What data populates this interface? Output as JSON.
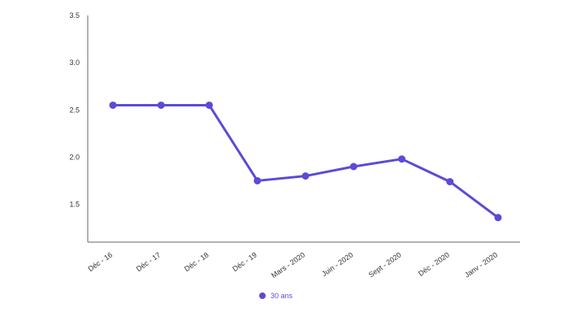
{
  "chart_data": {
    "type": "line",
    "title": "",
    "xlabel": "",
    "ylabel": "",
    "categories": [
      "Déc - 16",
      "Déc - 17",
      "Déc - 18",
      "Déc - 19",
      "Mars - 2020",
      "Juin - 2020",
      "Sept - 2020",
      "Déc - 2020",
      "Janv - 2020"
    ],
    "series": [
      {
        "name": "30 ans",
        "color": "#5b4bd6",
        "values": [
          2.55,
          2.55,
          2.55,
          1.75,
          1.8,
          1.9,
          1.98,
          1.74,
          1.36
        ]
      }
    ],
    "ylim": [
      1.1,
      3.5
    ],
    "yticks": [
      1.5,
      2.0,
      2.5,
      3.0,
      3.5
    ],
    "ytick_labels": [
      "1.5",
      "2.0",
      "2.5",
      "3.0",
      "3.5"
    ],
    "grid": false,
    "legend_position": "bottom-center"
  }
}
